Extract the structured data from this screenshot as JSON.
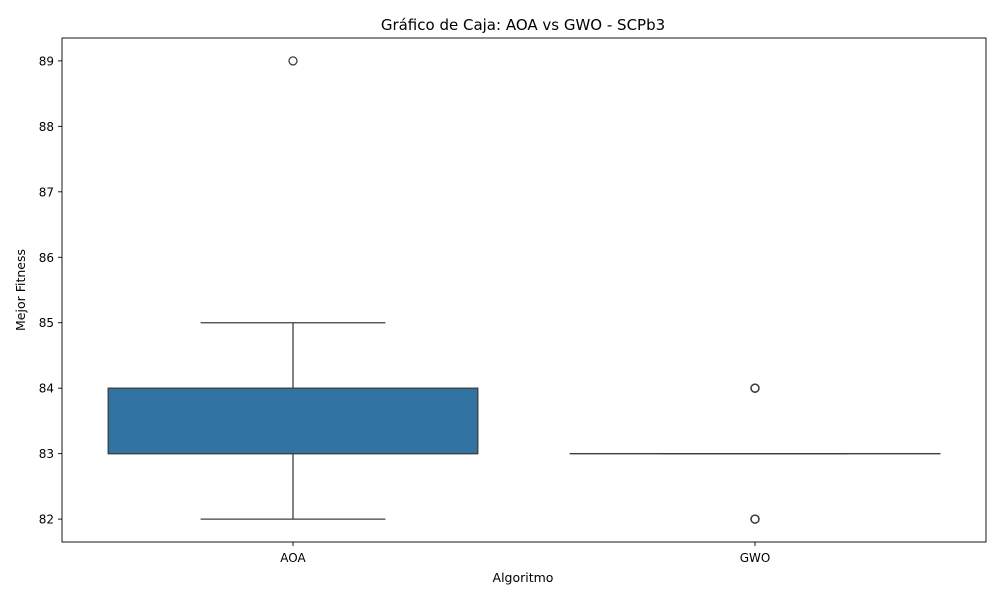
{
  "chart_data": {
    "type": "box",
    "title": "Gráfico de Caja: AOA vs GWO - SCPb3",
    "xlabel": "Algoritmo",
    "ylabel": "Mejor Fitness",
    "ylim": [
      81.65,
      89.35
    ],
    "yticks": [
      "82",
      "83",
      "84",
      "85",
      "86",
      "87",
      "88",
      "89"
    ],
    "grid": false,
    "boxes": [
      {
        "category": "AOA",
        "color": "#3274a1",
        "whisker_low": 82,
        "q1": 83,
        "median": 83,
        "q3": 84,
        "whisker_high": 85,
        "outliers": [
          89
        ]
      },
      {
        "category": "GWO",
        "color": "#3274a1",
        "whisker_low": 83,
        "q1": 83,
        "median": 83,
        "q3": 83,
        "whisker_high": 83,
        "outliers": [
          84,
          84,
          84,
          82,
          82,
          82
        ]
      }
    ]
  }
}
